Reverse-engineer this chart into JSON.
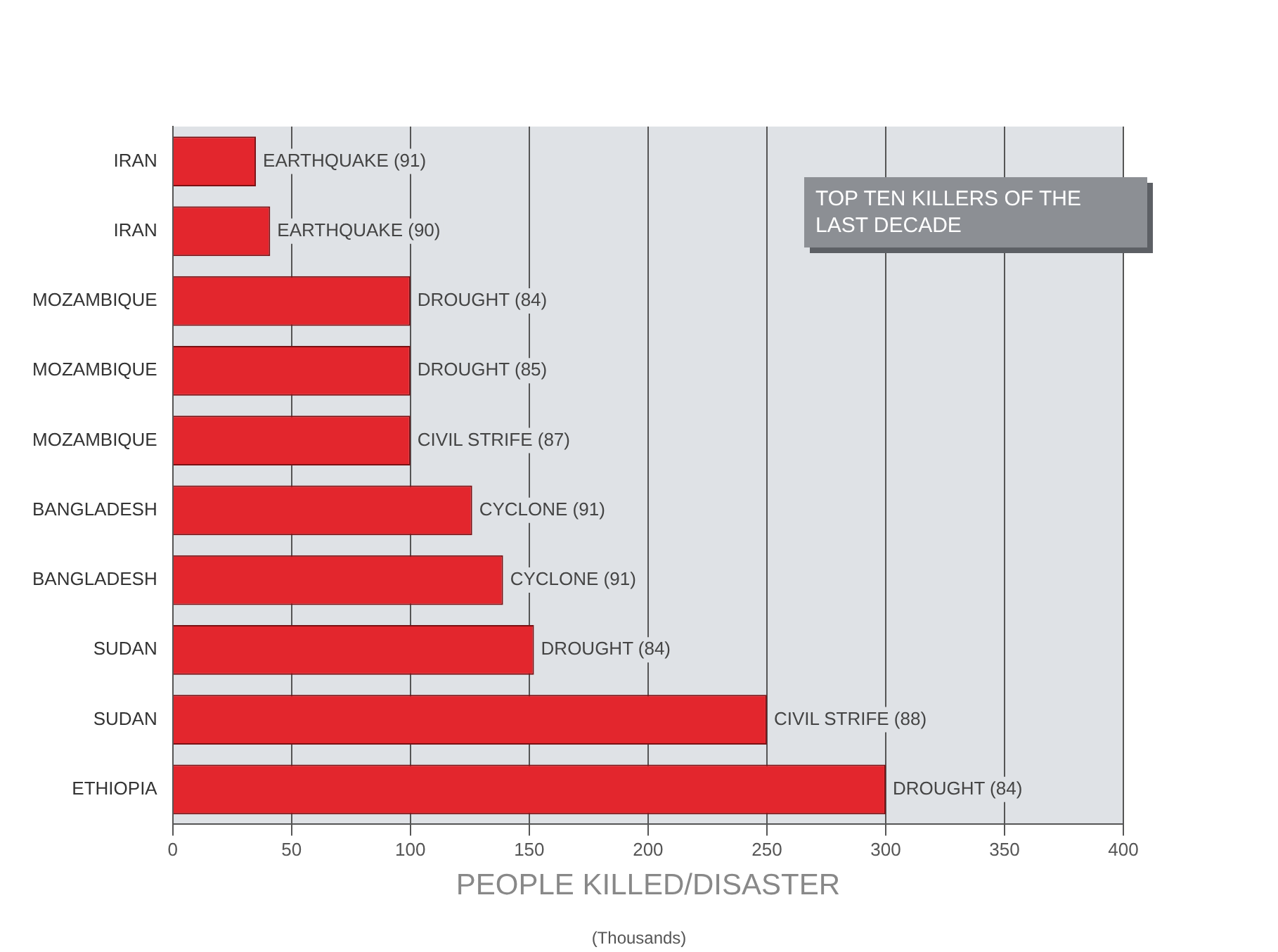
{
  "chart_data": {
    "type": "bar",
    "orientation": "horizontal",
    "title": "TOP TEN KILLERS OF THE LAST DECADE",
    "xlabel": "PEOPLE KILLED/DISASTER",
    "categories": [
      "IRAN",
      "IRAN",
      "MOZAMBIQUE",
      "MOZAMBIQUE",
      "MOZAMBIQUE",
      "BANGLADESH",
      "BANGLADESH",
      "SUDAN",
      "SUDAN",
      "ETHIOPIA"
    ],
    "values": [
      35,
      41,
      100,
      100,
      100,
      126,
      139,
      152,
      250,
      300
    ],
    "annotations": [
      "(Thousands)",
      "EARTHQUAKE (91)",
      "EARTHQUAKE (90)",
      "DROUGHT (84)",
      "DROUGHT (85)",
      "CIVIL STRIFE (87)",
      "CYCLONE (91)",
      "CYCLONE (91)",
      "DROUGHT (84)",
      "CIVIL STRIFE (88)",
      "DROUGHT (84)"
    ],
    "color": "#e3262d",
    "xlim": [
      0,
      400
    ],
    "xticks": [
      0,
      50,
      100,
      150,
      200,
      250,
      300,
      350,
      400
    ],
    "grid": "x",
    "legend": false
  }
}
